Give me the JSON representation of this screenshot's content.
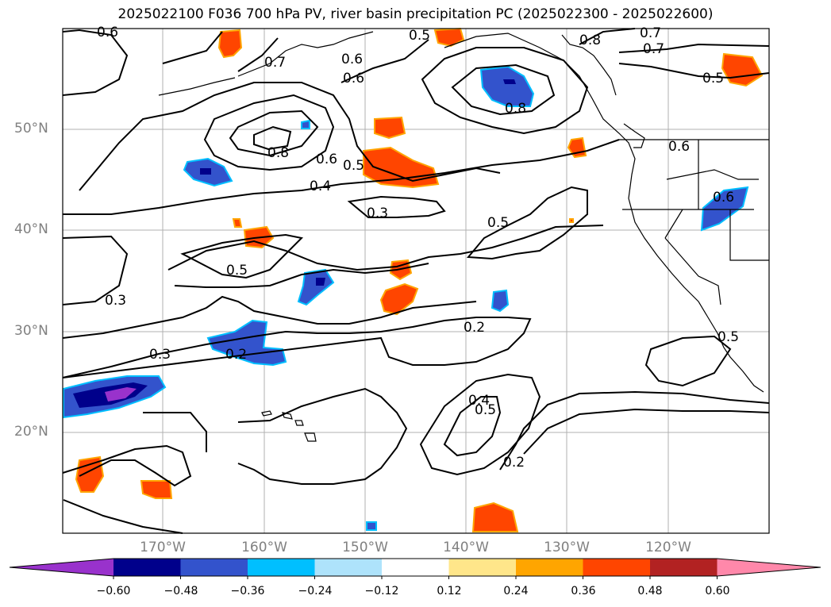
{
  "title": "2025022100 F036 700 hPa PV, river basin precipitation PC (2025022300 - 2025022600)",
  "lat_labels": [
    "50°N",
    "40°N",
    "30°N",
    "20°N"
  ],
  "lon_labels": [
    "170°W",
    "160°W",
    "150°W",
    "140°W",
    "130°W",
    "120°W"
  ],
  "colorbar": {
    "ticks": [
      "−0.60",
      "−0.48",
      "−0.36",
      "−0.24",
      "−0.12",
      "0.12",
      "0.24",
      "0.36",
      "0.48",
      "0.60"
    ],
    "colors": [
      "#9932cc",
      "#00008b",
      "#3353cc",
      "#00bfff",
      "#aee3fb",
      "#ffffff",
      "#ffe68a",
      "#ffa500",
      "#ff4500",
      "#b22222",
      "#ff88aa"
    ]
  },
  "contour_labels": [
    "0.6",
    "0.5",
    "0.7",
    "0.8",
    "0.7",
    "0.6",
    "0.6",
    "0.5",
    "0.8",
    "0.7",
    "0.8",
    "0.6",
    "0.5",
    "0.4",
    "0.3",
    "0.5",
    "0.5",
    "0.3",
    "0.3",
    "0.2",
    "0.2",
    "0.4",
    "0.5",
    "0.2",
    "0.6",
    "0.6",
    "0.5"
  ]
}
